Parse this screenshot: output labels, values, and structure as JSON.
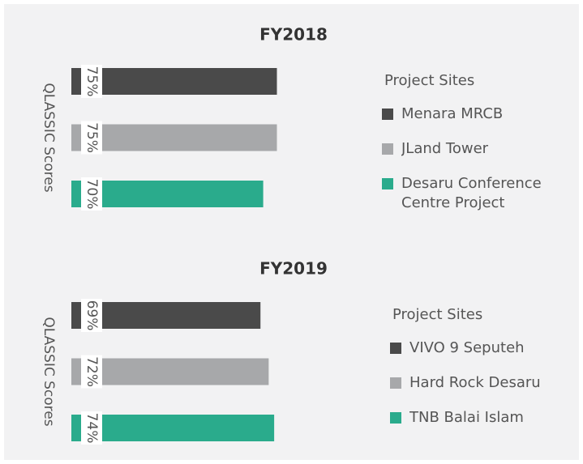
{
  "chart_data": [
    {
      "type": "bar",
      "orientation": "horizontal",
      "title": "FY2018",
      "ylabel": "QLASSIC Scores",
      "legend_title": "Project Sites",
      "categories": [
        "Menara MRCB",
        "JLand Tower",
        "Desaru Conference Centre Project"
      ],
      "values": [
        75,
        75,
        70
      ],
      "value_labels": [
        "75%",
        "75%",
        "70%"
      ],
      "colors": [
        "#4a4a4a",
        "#a7a8aa",
        "#2aab8c"
      ],
      "legend": "right"
    },
    {
      "type": "bar",
      "orientation": "horizontal",
      "title": "FY2019",
      "ylabel": "QLASSIC Scores",
      "legend_title": "Project Sites",
      "categories": [
        "VIVO 9 Seputeh",
        "Hard Rock Desaru",
        "TNB Balai Islam"
      ],
      "values": [
        69,
        72,
        74
      ],
      "value_labels": [
        "69%",
        "72%",
        "74%"
      ],
      "colors": [
        "#4a4a4a",
        "#a7a8aa",
        "#2aab8c"
      ],
      "legend": "right"
    }
  ]
}
